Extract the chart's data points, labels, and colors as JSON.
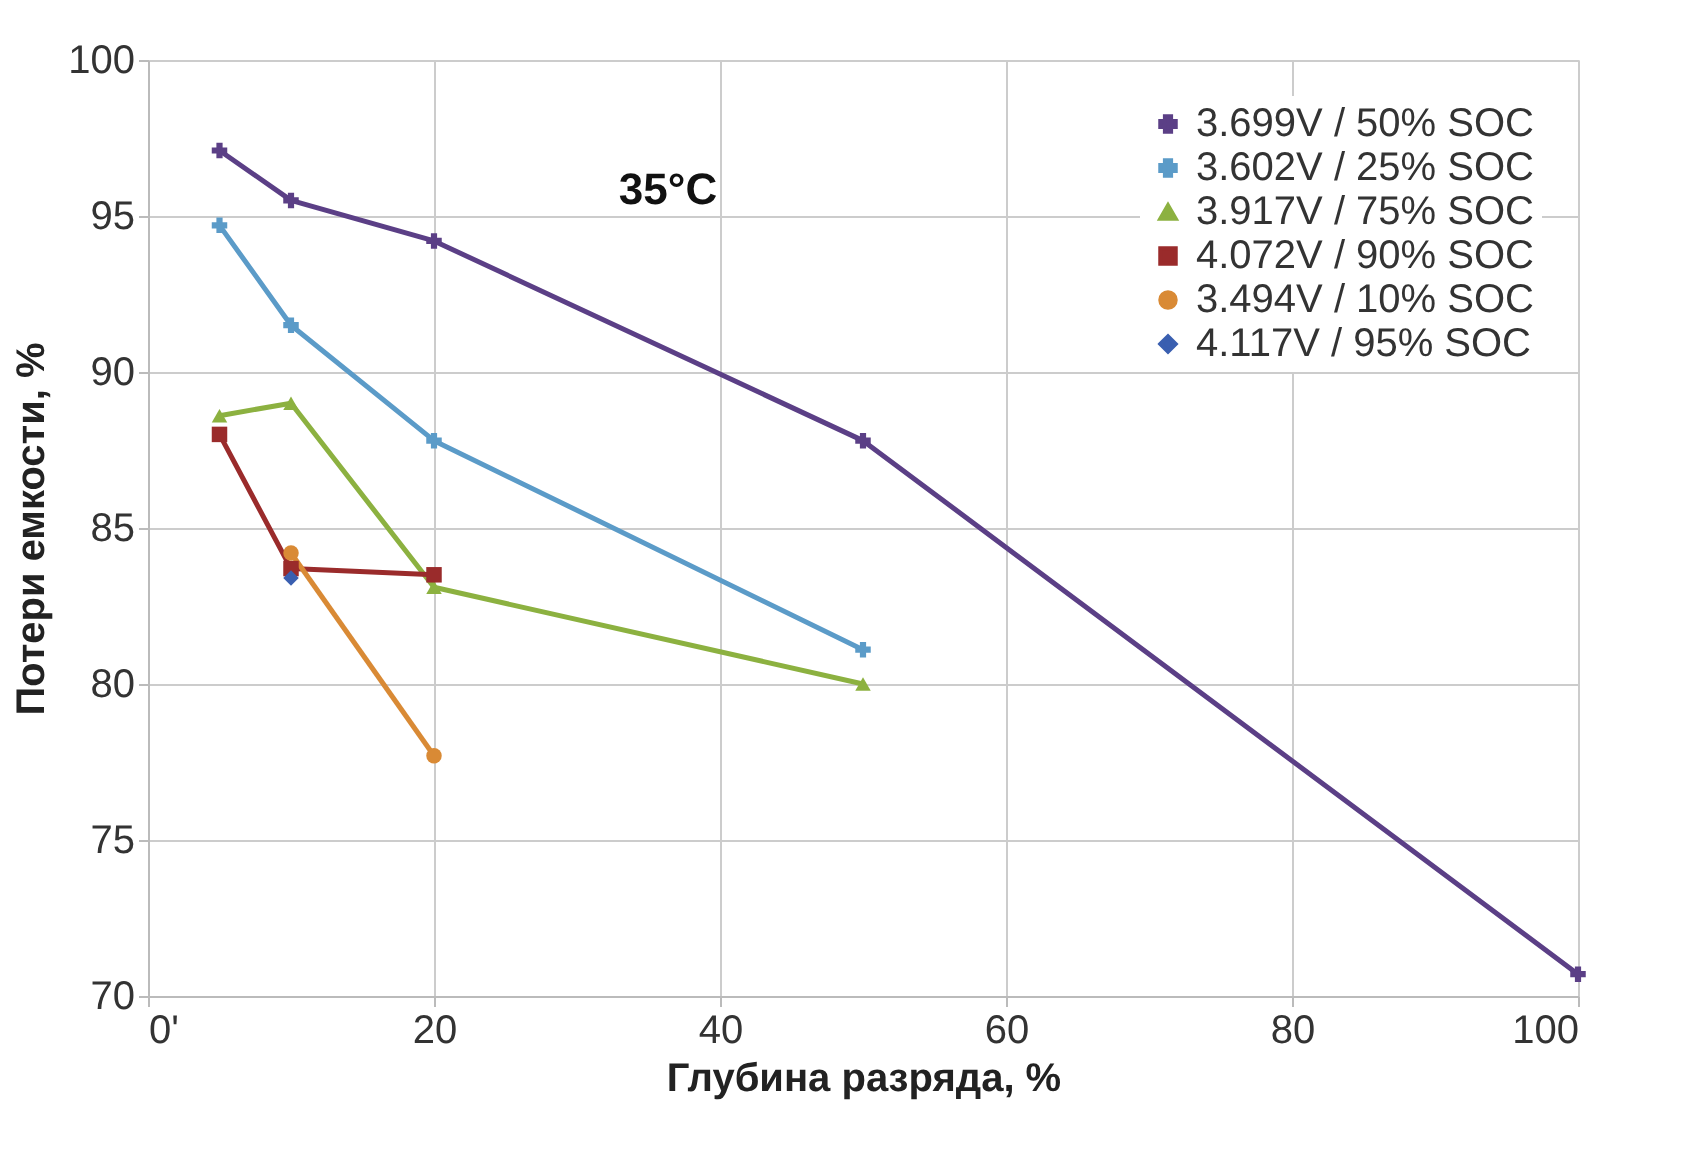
{
  "chart_data": {
    "type": "line",
    "xlabel": "Глубина разряда, %",
    "ylabel": "Потери емкости, %",
    "annotations": [
      "35°C"
    ],
    "xlim": [
      0,
      100
    ],
    "xticks": [
      {
        "value": 0,
        "label": "0'"
      },
      20,
      40,
      60,
      80,
      100
    ],
    "ylim": [
      70,
      100
    ],
    "yticks": [
      70,
      75,
      80,
      85,
      90,
      95,
      100
    ],
    "grid": true,
    "legend": "top right",
    "line_style": "solid",
    "series": [
      {
        "name": "3.699V / 50% SOC",
        "color": "#5b3f86",
        "marker": "cross",
        "x": [
          5,
          10,
          20,
          50,
          100
        ],
        "values": [
          97.1,
          95.5,
          94.2,
          87.8,
          70.7
        ]
      },
      {
        "name": "3.602V / 25% SOC",
        "color": "#5b9bc8",
        "marker": "cross",
        "x": [
          5,
          10,
          20,
          50
        ],
        "values": [
          94.7,
          91.5,
          87.8,
          81.1
        ]
      },
      {
        "name": "3.917V / 75% SOC",
        "color": "#8cb140",
        "marker": "triangle",
        "x": [
          5,
          10,
          20,
          50
        ],
        "values": [
          88.6,
          89.0,
          83.1,
          80.0
        ]
      },
      {
        "name": "4.072V / 90% SOC",
        "color": "#9a2b2b",
        "marker": "square",
        "x": [
          5,
          10,
          20
        ],
        "values": [
          88.0,
          83.7,
          83.5
        ]
      },
      {
        "name": "3.494V / 10% SOC",
        "color": "#d98a35",
        "marker": "circle",
        "x": [
          10,
          20
        ],
        "values": [
          84.2,
          77.7
        ]
      },
      {
        "name": "4.117V / 95% SOC",
        "color": "#3a5fb0",
        "marker": "diamond",
        "x": [
          10
        ],
        "values": [
          83.4
        ]
      }
    ]
  }
}
